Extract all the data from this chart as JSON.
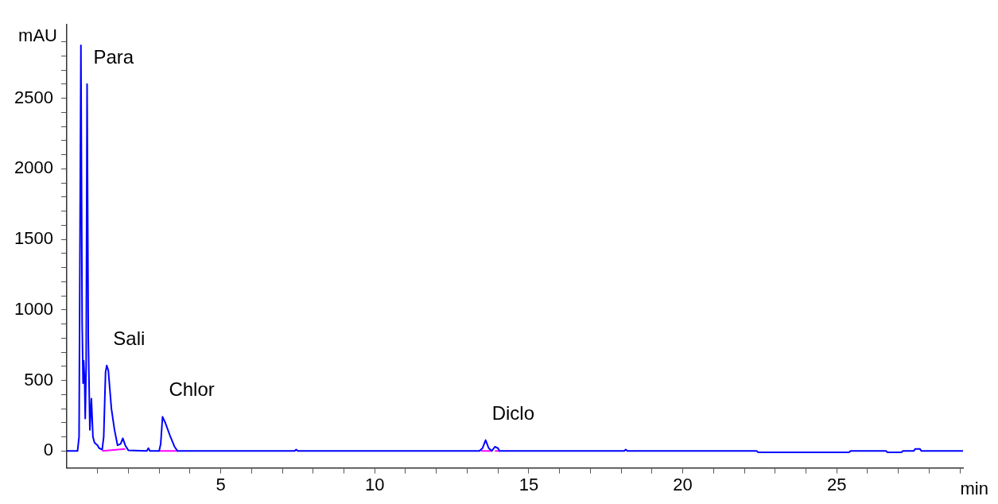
{
  "chart_data": {
    "type": "line",
    "xlabel": "min",
    "ylabel": "mAU",
    "xlim": [
      0,
      29.1
    ],
    "ylim": [
      -120,
      3020
    ],
    "xticks": [
      {
        "value": 1,
        "label": null
      },
      {
        "value": 2,
        "label": null
      },
      {
        "value": 3,
        "label": null
      },
      {
        "value": 4,
        "label": null
      },
      5,
      {
        "value": 6,
        "label": null
      },
      {
        "value": 7,
        "label": null
      },
      {
        "value": 8,
        "label": null
      },
      {
        "value": 9,
        "label": null
      },
      10,
      {
        "value": 11,
        "label": null
      },
      {
        "value": 12,
        "label": null
      },
      {
        "value": 13,
        "label": null
      },
      {
        "value": 14,
        "label": null
      },
      15,
      {
        "value": 16,
        "label": null
      },
      {
        "value": 17,
        "label": null
      },
      {
        "value": 18,
        "label": null
      },
      {
        "value": 19,
        "label": null
      },
      20,
      {
        "value": 21,
        "label": null
      },
      {
        "value": 22,
        "label": null
      },
      {
        "value": 23,
        "label": null
      },
      {
        "value": 24,
        "label": null
      },
      25,
      {
        "value": 26,
        "label": null
      },
      {
        "value": 27,
        "label": null
      },
      {
        "value": 28,
        "label": null
      },
      {
        "value": 29,
        "label": null
      }
    ],
    "yticks": [
      0,
      {
        "value": 100,
        "label": null
      },
      {
        "value": 200,
        "label": null
      },
      {
        "value": 300,
        "label": null
      },
      {
        "value": 400,
        "label": null
      },
      500,
      {
        "value": 600,
        "label": null
      },
      {
        "value": 700,
        "label": null
      },
      {
        "value": 800,
        "label": null
      },
      {
        "value": 900,
        "label": null
      },
      1000,
      {
        "value": 1100,
        "label": null
      },
      {
        "value": 1200,
        "label": null
      },
      {
        "value": 1300,
        "label": null
      },
      {
        "value": 1400,
        "label": null
      },
      1500,
      {
        "value": 1600,
        "label": null
      },
      {
        "value": 1700,
        "label": null
      },
      {
        "value": 1800,
        "label": null
      },
      {
        "value": 1900,
        "label": null
      },
      2000,
      {
        "value": 2100,
        "label": null
      },
      {
        "value": 2200,
        "label": null
      },
      {
        "value": 2300,
        "label": null
      },
      {
        "value": 2400,
        "label": null
      },
      2500,
      {
        "value": 2600,
        "label": null
      },
      {
        "value": 2700,
        "label": null
      },
      {
        "value": 2800,
        "label": null
      },
      {
        "value": 2900,
        "label": null
      }
    ],
    "grid": false,
    "legend": false,
    "marker": "none",
    "line_style": "solid",
    "annotations": [
      {
        "text": "Para",
        "x": 0.66,
        "y": 2600
      },
      {
        "text": "Sali",
        "x": 1.3,
        "y": 606
      },
      {
        "text": "Chlor",
        "x": 3.11,
        "y": 242
      },
      {
        "text": "Diclo",
        "x": 13.6,
        "y": 77
      }
    ],
    "series": [
      {
        "color": "#0000ff",
        "x": [
          0,
          0.35,
          0.4,
          0.46,
          0.5,
          0.53,
          0.55,
          0.58,
          0.6,
          0.63,
          0.66,
          0.7,
          0.75,
          0.8,
          0.85,
          0.9,
          1.0,
          1.05,
          1.15,
          1.2,
          1.26,
          1.3,
          1.35,
          1.45,
          1.55,
          1.65,
          1.75,
          1.82,
          1.9,
          2.0,
          2.6,
          2.65,
          2.7,
          3.0,
          3.05,
          3.11,
          3.2,
          3.35,
          3.5,
          3.6,
          7.4,
          7.45,
          7.5,
          13.4,
          13.5,
          13.6,
          13.7,
          13.8,
          13.9,
          14.0,
          14.05,
          18.1,
          18.15,
          18.2,
          22.4,
          22.45,
          25.4,
          25.45,
          26.6,
          26.65,
          27.1,
          27.15,
          27.5,
          27.55,
          27.7,
          27.75,
          29.1
        ],
        "values": [
          0,
          0,
          100,
          2875,
          900,
          480,
          640,
          500,
          230,
          600,
          2600,
          800,
          150,
          370,
          100,
          60,
          40,
          20,
          10,
          100,
          560,
          606,
          570,
          300,
          150,
          40,
          50,
          90,
          40,
          5,
          0,
          20,
          0,
          0,
          50,
          242,
          200,
          110,
          30,
          0,
          0,
          10,
          0,
          0,
          20,
          77,
          20,
          0,
          30,
          20,
          0,
          0,
          10,
          0,
          0,
          -10,
          -10,
          0,
          0,
          -10,
          -10,
          0,
          0,
          15,
          15,
          0,
          0
        ]
      },
      {
        "color": "#ff00ff",
        "x": [
          1.15,
          1.9,
          1.95,
          3.0,
          3.6,
          3.65,
          13.45,
          13.8,
          13.85,
          13.9,
          14.05
        ],
        "values": [
          0,
          15,
          null,
          0,
          0,
          null,
          0,
          0,
          null,
          0,
          0
        ]
      }
    ]
  }
}
